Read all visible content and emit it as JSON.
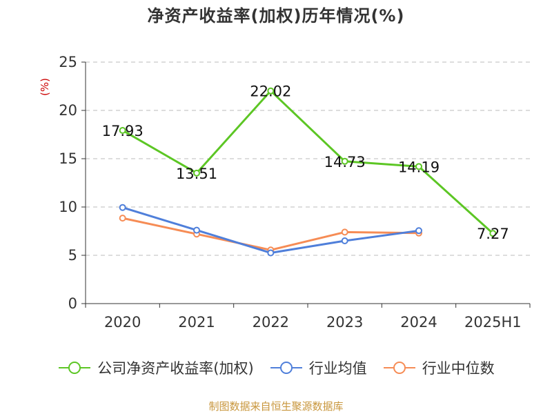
{
  "title": "净资产收益率(加权)历年情况(%)",
  "source": "制图数据来自恒生聚源数据库",
  "chart_data": {
    "type": "line",
    "title": "净资产收益率(加权)历年情况(%)",
    "ylabel": "(%)",
    "categories": [
      "2020",
      "2021",
      "2022",
      "2023",
      "2024",
      "2025H1"
    ],
    "ylim": [
      0,
      25
    ],
    "yticks": [
      0,
      5,
      10,
      15,
      20,
      25
    ],
    "grid": true,
    "legend_position": "bottom",
    "series": [
      {
        "name": "公司净资产收益率(加权)",
        "color": "#5cc624",
        "values": [
          17.93,
          13.51,
          22.02,
          14.73,
          14.19,
          7.27
        ],
        "labels": [
          "17.93",
          "13.51",
          "22.02",
          "14.73",
          "14.19",
          "7.27"
        ],
        "show_labels": true
      },
      {
        "name": "行业均值",
        "color": "#4f7fda",
        "values": [
          9.95,
          7.6,
          5.25,
          6.5,
          7.55,
          null
        ],
        "show_labels": false
      },
      {
        "name": "行业中位数",
        "color": "#f68c55",
        "values": [
          8.85,
          7.2,
          5.55,
          7.4,
          7.3,
          null
        ],
        "show_labels": false
      }
    ]
  }
}
